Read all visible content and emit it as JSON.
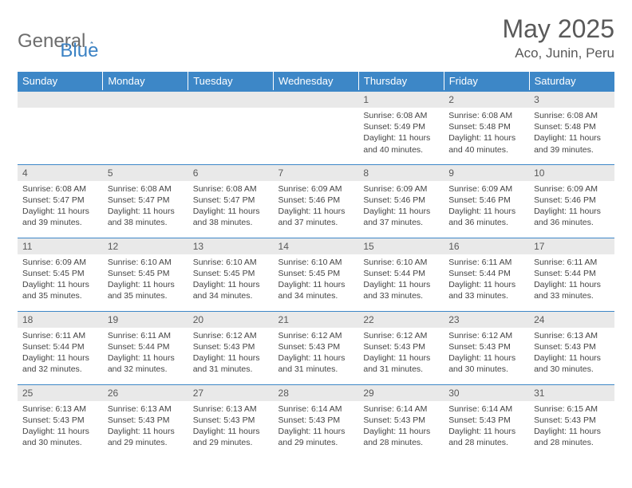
{
  "logo": {
    "text1": "General",
    "text2": "Blue"
  },
  "header": {
    "month": "May 2025",
    "location": "Aco, Junin, Peru"
  },
  "columns": [
    "Sunday",
    "Monday",
    "Tuesday",
    "Wednesday",
    "Thursday",
    "Friday",
    "Saturday"
  ],
  "colors": {
    "header_bg": "#3d87c7",
    "header_text": "#ffffff",
    "daynum_bg": "#e9e9e9",
    "body_text": "#444444",
    "logo_gray": "#6d6d6d",
    "logo_blue": "#3b82c4",
    "title_color": "#595959"
  },
  "weeks": [
    [
      {
        "n": "",
        "sr": "",
        "ss": "",
        "dl": ""
      },
      {
        "n": "",
        "sr": "",
        "ss": "",
        "dl": ""
      },
      {
        "n": "",
        "sr": "",
        "ss": "",
        "dl": ""
      },
      {
        "n": "",
        "sr": "",
        "ss": "",
        "dl": ""
      },
      {
        "n": "1",
        "sr": "Sunrise: 6:08 AM",
        "ss": "Sunset: 5:49 PM",
        "dl": "Daylight: 11 hours and 40 minutes."
      },
      {
        "n": "2",
        "sr": "Sunrise: 6:08 AM",
        "ss": "Sunset: 5:48 PM",
        "dl": "Daylight: 11 hours and 40 minutes."
      },
      {
        "n": "3",
        "sr": "Sunrise: 6:08 AM",
        "ss": "Sunset: 5:48 PM",
        "dl": "Daylight: 11 hours and 39 minutes."
      }
    ],
    [
      {
        "n": "4",
        "sr": "Sunrise: 6:08 AM",
        "ss": "Sunset: 5:47 PM",
        "dl": "Daylight: 11 hours and 39 minutes."
      },
      {
        "n": "5",
        "sr": "Sunrise: 6:08 AM",
        "ss": "Sunset: 5:47 PM",
        "dl": "Daylight: 11 hours and 38 minutes."
      },
      {
        "n": "6",
        "sr": "Sunrise: 6:08 AM",
        "ss": "Sunset: 5:47 PM",
        "dl": "Daylight: 11 hours and 38 minutes."
      },
      {
        "n": "7",
        "sr": "Sunrise: 6:09 AM",
        "ss": "Sunset: 5:46 PM",
        "dl": "Daylight: 11 hours and 37 minutes."
      },
      {
        "n": "8",
        "sr": "Sunrise: 6:09 AM",
        "ss": "Sunset: 5:46 PM",
        "dl": "Daylight: 11 hours and 37 minutes."
      },
      {
        "n": "9",
        "sr": "Sunrise: 6:09 AM",
        "ss": "Sunset: 5:46 PM",
        "dl": "Daylight: 11 hours and 36 minutes."
      },
      {
        "n": "10",
        "sr": "Sunrise: 6:09 AM",
        "ss": "Sunset: 5:46 PM",
        "dl": "Daylight: 11 hours and 36 minutes."
      }
    ],
    [
      {
        "n": "11",
        "sr": "Sunrise: 6:09 AM",
        "ss": "Sunset: 5:45 PM",
        "dl": "Daylight: 11 hours and 35 minutes."
      },
      {
        "n": "12",
        "sr": "Sunrise: 6:10 AM",
        "ss": "Sunset: 5:45 PM",
        "dl": "Daylight: 11 hours and 35 minutes."
      },
      {
        "n": "13",
        "sr": "Sunrise: 6:10 AM",
        "ss": "Sunset: 5:45 PM",
        "dl": "Daylight: 11 hours and 34 minutes."
      },
      {
        "n": "14",
        "sr": "Sunrise: 6:10 AM",
        "ss": "Sunset: 5:45 PM",
        "dl": "Daylight: 11 hours and 34 minutes."
      },
      {
        "n": "15",
        "sr": "Sunrise: 6:10 AM",
        "ss": "Sunset: 5:44 PM",
        "dl": "Daylight: 11 hours and 33 minutes."
      },
      {
        "n": "16",
        "sr": "Sunrise: 6:11 AM",
        "ss": "Sunset: 5:44 PM",
        "dl": "Daylight: 11 hours and 33 minutes."
      },
      {
        "n": "17",
        "sr": "Sunrise: 6:11 AM",
        "ss": "Sunset: 5:44 PM",
        "dl": "Daylight: 11 hours and 33 minutes."
      }
    ],
    [
      {
        "n": "18",
        "sr": "Sunrise: 6:11 AM",
        "ss": "Sunset: 5:44 PM",
        "dl": "Daylight: 11 hours and 32 minutes."
      },
      {
        "n": "19",
        "sr": "Sunrise: 6:11 AM",
        "ss": "Sunset: 5:44 PM",
        "dl": "Daylight: 11 hours and 32 minutes."
      },
      {
        "n": "20",
        "sr": "Sunrise: 6:12 AM",
        "ss": "Sunset: 5:43 PM",
        "dl": "Daylight: 11 hours and 31 minutes."
      },
      {
        "n": "21",
        "sr": "Sunrise: 6:12 AM",
        "ss": "Sunset: 5:43 PM",
        "dl": "Daylight: 11 hours and 31 minutes."
      },
      {
        "n": "22",
        "sr": "Sunrise: 6:12 AM",
        "ss": "Sunset: 5:43 PM",
        "dl": "Daylight: 11 hours and 31 minutes."
      },
      {
        "n": "23",
        "sr": "Sunrise: 6:12 AM",
        "ss": "Sunset: 5:43 PM",
        "dl": "Daylight: 11 hours and 30 minutes."
      },
      {
        "n": "24",
        "sr": "Sunrise: 6:13 AM",
        "ss": "Sunset: 5:43 PM",
        "dl": "Daylight: 11 hours and 30 minutes."
      }
    ],
    [
      {
        "n": "25",
        "sr": "Sunrise: 6:13 AM",
        "ss": "Sunset: 5:43 PM",
        "dl": "Daylight: 11 hours and 30 minutes."
      },
      {
        "n": "26",
        "sr": "Sunrise: 6:13 AM",
        "ss": "Sunset: 5:43 PM",
        "dl": "Daylight: 11 hours and 29 minutes."
      },
      {
        "n": "27",
        "sr": "Sunrise: 6:13 AM",
        "ss": "Sunset: 5:43 PM",
        "dl": "Daylight: 11 hours and 29 minutes."
      },
      {
        "n": "28",
        "sr": "Sunrise: 6:14 AM",
        "ss": "Sunset: 5:43 PM",
        "dl": "Daylight: 11 hours and 29 minutes."
      },
      {
        "n": "29",
        "sr": "Sunrise: 6:14 AM",
        "ss": "Sunset: 5:43 PM",
        "dl": "Daylight: 11 hours and 28 minutes."
      },
      {
        "n": "30",
        "sr": "Sunrise: 6:14 AM",
        "ss": "Sunset: 5:43 PM",
        "dl": "Daylight: 11 hours and 28 minutes."
      },
      {
        "n": "31",
        "sr": "Sunrise: 6:15 AM",
        "ss": "Sunset: 5:43 PM",
        "dl": "Daylight: 11 hours and 28 minutes."
      }
    ]
  ]
}
